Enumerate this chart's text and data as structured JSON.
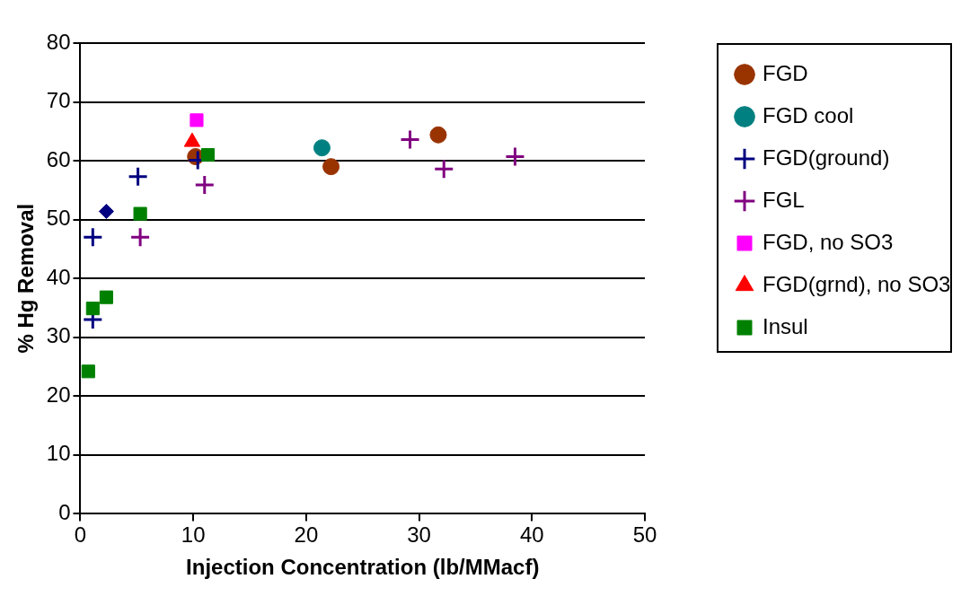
{
  "chart_data": {
    "type": "scatter",
    "xlabel": "Injection Concentration (lb/MMacf)",
    "ylabel": "% Hg Removal",
    "xlim": [
      0,
      50
    ],
    "xticks": [
      0,
      10,
      20,
      30,
      40,
      50
    ],
    "ylim": [
      0,
      80
    ],
    "yticks": [
      0,
      10,
      20,
      30,
      40,
      50,
      60,
      70,
      80
    ],
    "grid": "y",
    "legend": "right",
    "series": [
      {
        "name": "FGD",
        "color": "#993300",
        "marker": "circle",
        "x": [
          10.2,
          22.2,
          31.7
        ],
        "values": [
          60.7,
          59.0,
          64.4
        ]
      },
      {
        "name": "FGD cool",
        "color": "#008080",
        "marker": "circle",
        "x": [
          21.4
        ],
        "values": [
          62.2
        ]
      },
      {
        "name": "FGD(ground)",
        "color": "#000080",
        "marker": "cross",
        "x": [
          1.1,
          5.1,
          10.4,
          1.1
        ],
        "values": [
          47,
          57.3,
          60.1,
          33
        ]
      },
      {
        "name": "FGL",
        "color": "#800080",
        "marker": "cross",
        "x": [
          5.3,
          11.0,
          29.2,
          32.2,
          38.5
        ],
        "values": [
          47,
          55.9,
          63.6,
          58.6,
          60.7
        ]
      },
      {
        "name": "FGD, no SO3",
        "color": "#ff00ff",
        "marker": "square",
        "x": [
          10.3
        ],
        "values": [
          66.9
        ]
      },
      {
        "name": "FGD(grnd), no SO3",
        "color": "#ff0000",
        "marker": "triangle",
        "x": [
          9.9
        ],
        "values": [
          63.2
        ]
      },
      {
        "name": "Insul",
        "color": "#008000",
        "marker": "square",
        "x": [
          11.3,
          5.3,
          2.3,
          1.1,
          0.7
        ],
        "values": [
          61.0,
          51.0,
          36.8,
          34.9,
          24.2
        ]
      },
      {
        "color": "#000080",
        "marker": "diamond",
        "x": [
          2.3
        ],
        "values": [
          51.4
        ]
      }
    ]
  }
}
